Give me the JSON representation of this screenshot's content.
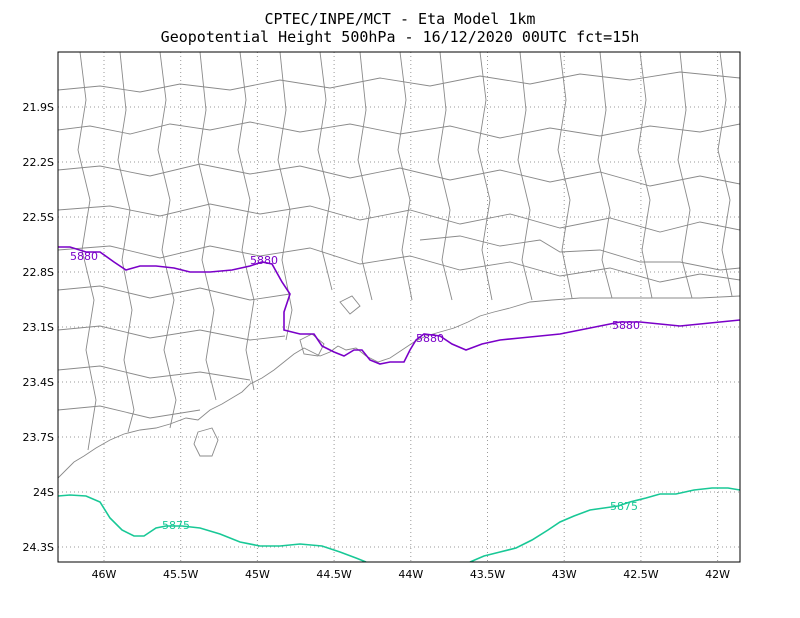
{
  "title_line1": "CPTEC/INPE/MCT -  Eta Model 1km",
  "title_line2": "Geopotential Height 500hPa - 16/12/2020 00UTC fct=15h",
  "map": {
    "x_ticks": [
      "46W",
      "45.5W",
      "45W",
      "44.5W",
      "44W",
      "43.5W",
      "43W",
      "42.5W",
      "42W"
    ],
    "y_ticks": [
      "21.9S",
      "22.2S",
      "22.5S",
      "22.8S",
      "23.1S",
      "23.4S",
      "23.7S",
      "24S",
      "24.3S"
    ],
    "colors": {
      "contour_5880": "#7a00c8",
      "contour_5875": "#18c896",
      "borders": "#8a8a8a",
      "grid": "#9a9a9a"
    },
    "contours": [
      {
        "level": "5880",
        "labels": [
          "5880",
          "5880",
          "5880",
          "5880"
        ]
      },
      {
        "level": "5875",
        "labels": [
          "5875",
          "5875"
        ]
      }
    ]
  }
}
